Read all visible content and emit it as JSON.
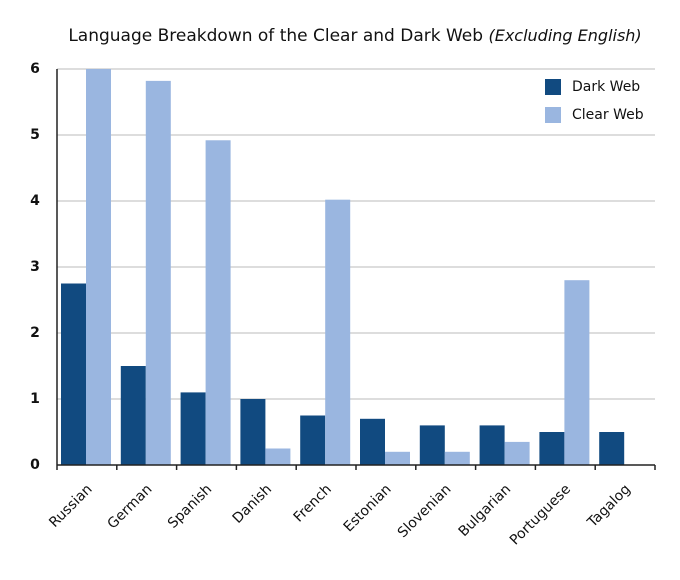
{
  "chart_data": {
    "type": "bar",
    "title": "Language Breakdown of the Clear and Dark Web",
    "subtitle": "(Excluding English)",
    "categories": [
      "Russian",
      "German",
      "Spanish",
      "Danish",
      "French",
      "Estonian",
      "Slovenian",
      "Bulgarian",
      "Portuguese",
      "Tagalog"
    ],
    "series": [
      {
        "name": "Dark Web",
        "color": "#114a80",
        "values": [
          2.75,
          1.5,
          1.1,
          1.0,
          0.75,
          0.7,
          0.6,
          0.6,
          0.5,
          0.5
        ]
      },
      {
        "name": "Clear Web",
        "color": "#9ab6e0",
        "values": [
          6.0,
          5.82,
          4.92,
          0.25,
          4.02,
          0.2,
          0.2,
          0.35,
          2.8,
          null
        ]
      }
    ],
    "ylim": [
      0,
      6
    ],
    "yticks": [
      0,
      1,
      2,
      3,
      4,
      5,
      6
    ],
    "grid": true,
    "legend": "top-right"
  }
}
